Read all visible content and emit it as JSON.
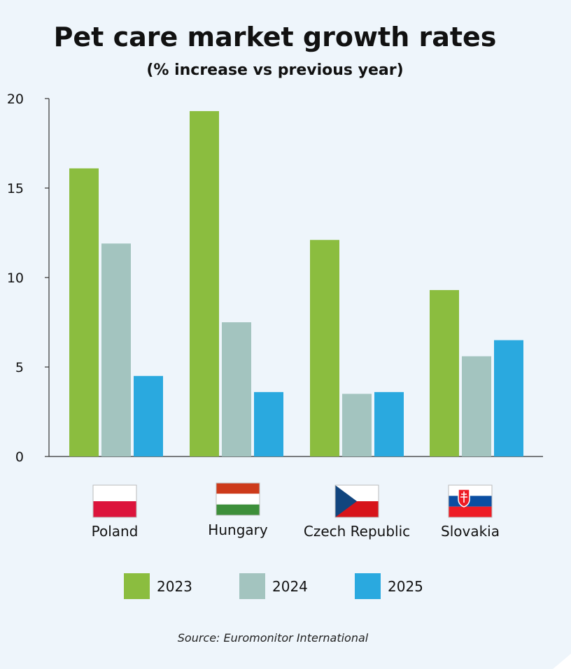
{
  "chart_data": {
    "type": "bar",
    "title": "Pet care market growth rates",
    "subtitle": "(% increase vs previous year)",
    "xlabel": "",
    "ylabel": "",
    "ylim": [
      0,
      20
    ],
    "yticks": [
      "0",
      "5",
      "10",
      "15",
      "20"
    ],
    "grid": false,
    "categories": [
      "Poland",
      "Hungary",
      "Czech Republic",
      "Slovakia"
    ],
    "flags": [
      "poland-flag",
      "hungary-flag",
      "czech-flag",
      "slovakia-flag"
    ],
    "series": [
      {
        "name": "2023",
        "color": "#8bbd3f",
        "values": [
          16.1,
          19.3,
          12.1,
          9.3
        ]
      },
      {
        "name": "2024",
        "color": "#a3c4bf",
        "values": [
          11.9,
          7.5,
          3.5,
          5.6
        ]
      },
      {
        "name": "2025",
        "color": "#2aa9df",
        "values": [
          4.5,
          3.6,
          3.6,
          6.5
        ]
      }
    ],
    "legend_position": "bottom",
    "source": "Source: Euromonitor International"
  }
}
